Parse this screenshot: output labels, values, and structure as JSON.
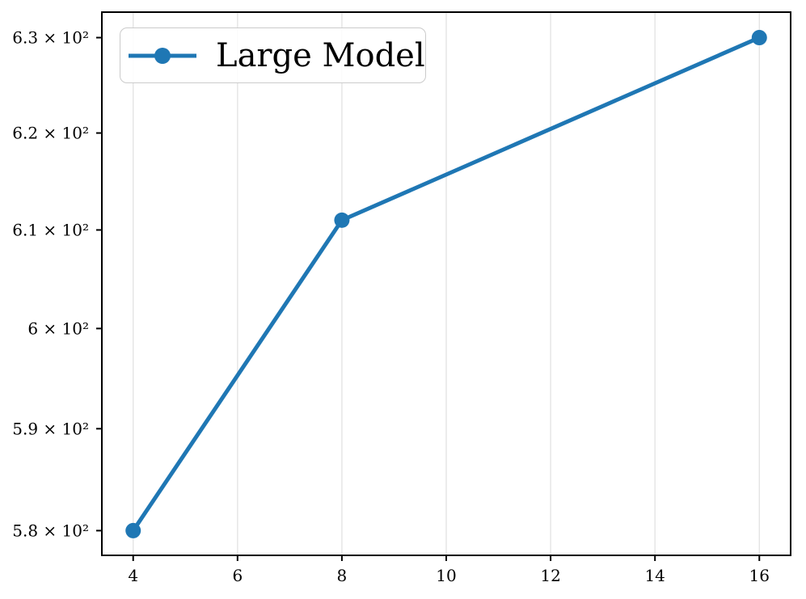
{
  "figure": {
    "background": "#ffffff",
    "spine_color": "#000000",
    "tick_color": "#000000"
  },
  "chart_data": {
    "type": "line",
    "title": "",
    "xlabel": "",
    "ylabel": "",
    "x_scale": "linear",
    "y_scale": "log",
    "xlim": [
      3.4,
      16.6
    ],
    "ylim": [
      577.6,
      632.7
    ],
    "grid": "x-only",
    "grid_color": "#e4e4e4",
    "legend": {
      "position": "upper-left",
      "entries": [
        "Large Model"
      ]
    },
    "series": [
      {
        "name": "Large Model",
        "color": "#1f77b4",
        "marker": "circle",
        "line_width": 5,
        "x": [
          4,
          8,
          16
        ],
        "y": [
          580,
          611,
          630
        ]
      }
    ],
    "x_ticks": [
      {
        "value": 4,
        "label": "4"
      },
      {
        "value": 6,
        "label": "6"
      },
      {
        "value": 8,
        "label": "8"
      },
      {
        "value": 10,
        "label": "10"
      },
      {
        "value": 12,
        "label": "12"
      },
      {
        "value": 14,
        "label": "14"
      },
      {
        "value": 16,
        "label": "16"
      }
    ],
    "y_ticks": [
      {
        "value": 580,
        "label": "5.8 × 10²"
      },
      {
        "value": 590,
        "label": "5.9 × 10²"
      },
      {
        "value": 600,
        "label": "6 × 10²"
      },
      {
        "value": 610,
        "label": "6.1 × 10²"
      },
      {
        "value": 620,
        "label": "6.2 × 10²"
      },
      {
        "value": 630,
        "label": "6.3 × 10²"
      }
    ]
  }
}
